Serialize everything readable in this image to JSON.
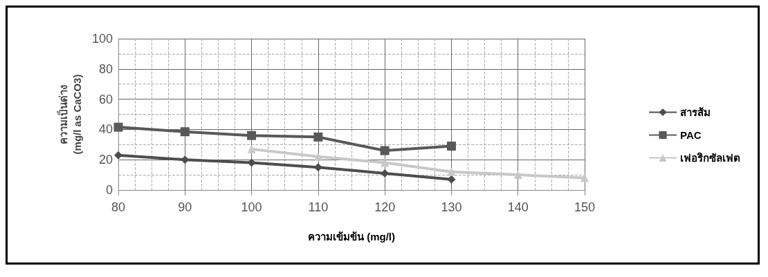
{
  "chart_data": {
    "type": "line",
    "xlabel": "ความเข้มข้น (mg/l)",
    "ylabel": "ความเป็นด่าง\n(mg/l as CaCO3)",
    "xlim": [
      80,
      150
    ],
    "xticks": [
      80,
      90,
      100,
      110,
      120,
      130,
      140,
      150
    ],
    "ylim": [
      0,
      100
    ],
    "yticks": [
      0,
      20,
      40,
      60,
      80,
      100
    ],
    "grid": true,
    "legend": "right",
    "series": [
      {
        "name": "สารส้ม",
        "color": "#4d4d4d",
        "marker": "diamond",
        "x": [
          80,
          90,
          100,
          110,
          120,
          130
        ],
        "values": [
          23,
          20,
          18,
          15,
          11,
          7
        ]
      },
      {
        "name": "PAC",
        "color": "#595959",
        "marker": "square",
        "x": [
          80,
          90,
          100,
          110,
          120,
          130
        ],
        "values": [
          41.5,
          38.5,
          36,
          35,
          26,
          29
        ]
      },
      {
        "name": "เฟอริกซัลเฟต",
        "color": "#c8c8c8",
        "marker": "triangle",
        "x": [
          100,
          110,
          120,
          130,
          140,
          150
        ],
        "values": [
          27,
          22,
          18,
          12,
          10,
          8
        ]
      }
    ]
  }
}
